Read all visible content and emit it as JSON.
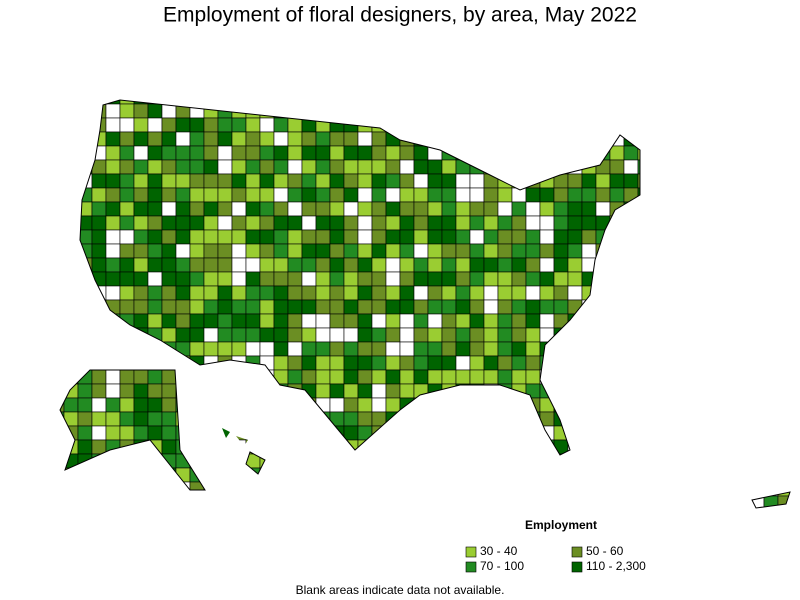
{
  "title": "Employment of floral designers, by area, May 2022",
  "legend": {
    "title": "Employment",
    "items": [
      {
        "label": "30 - 40",
        "color": "#9acd32"
      },
      {
        "label": "50 - 60",
        "color": "#6b8e23"
      },
      {
        "label": "70 - 100",
        "color": "#228b22"
      },
      {
        "label": "110 - 2,300",
        "color": "#006400"
      }
    ]
  },
  "note": "Blank areas indicate data not available."
}
